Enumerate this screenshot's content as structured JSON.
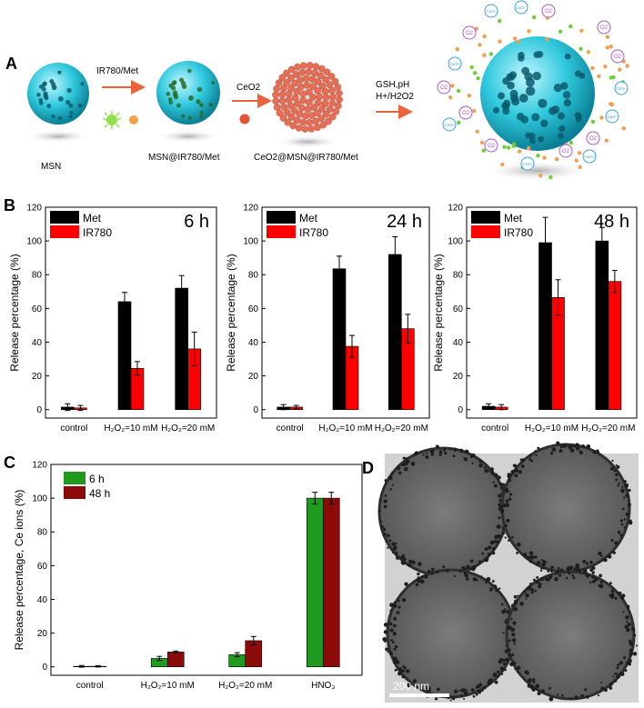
{
  "panel_letters": {
    "a": "A",
    "b": "B",
    "c": "C",
    "d": "D"
  },
  "scheme": {
    "stage1_label": "MSN",
    "arrow1_label": "IR780/Met",
    "stage2_label": "MSN@IR780/Met",
    "arrow2_label": "CeO2",
    "stage3_label": "CeO2@MSN@IR780/Met",
    "arrow3_label_line1": "GSH,pH",
    "arrow3_label_line2": "H+/H2O2",
    "ion_label_ce": "Ce3+",
    "ion_label_o": "O2",
    "colors": {
      "silica": "#2ec9de",
      "ceria": "#e56f55",
      "arrow": "#e9643a",
      "green_dot": "#6ccf3a",
      "orange_dot": "#f0a050"
    }
  },
  "tem": {
    "scale_bar_label": "200 nm"
  },
  "chart_data": [
    {
      "id": "B1",
      "type": "bar",
      "title": "6 h",
      "categories": [
        "control",
        "H₂O₂=10 mM",
        "H₂O₂=20 mM"
      ],
      "series": [
        {
          "name": "Met",
          "color": "#000000",
          "values": [
            1.5,
            64,
            72
          ],
          "errors": [
            2,
            5.5,
            7.5
          ]
        },
        {
          "name": "IR780",
          "color": "#ff0000",
          "values": [
            1.0,
            24.5,
            36
          ],
          "errors": [
            1.5,
            4,
            10
          ]
        }
      ],
      "xlabel": "",
      "ylabel": "Release percentage (%)",
      "ylim": [
        -5,
        120
      ],
      "yticks": [
        0,
        20,
        40,
        60,
        80,
        100,
        120
      ]
    },
    {
      "id": "B2",
      "type": "bar",
      "title": "24 h",
      "categories": [
        "control",
        "H₂O₂=10 mM",
        "H₂O₂=20 mM"
      ],
      "series": [
        {
          "name": "Met",
          "color": "#000000",
          "values": [
            1.5,
            83.5,
            92
          ],
          "errors": [
            1.5,
            7.5,
            10.5
          ]
        },
        {
          "name": "IR780",
          "color": "#ff0000",
          "values": [
            1.5,
            37.5,
            48
          ],
          "errors": [
            1,
            6.5,
            8.5
          ]
        }
      ],
      "xlabel": "",
      "ylabel": "Release percentage (%)",
      "ylim": [
        -5,
        120
      ],
      "yticks": [
        0,
        20,
        40,
        60,
        80,
        100,
        120
      ]
    },
    {
      "id": "B3",
      "type": "bar",
      "title": "48 h",
      "categories": [
        "control",
        "H₂O₂=10 mM",
        "H₂O₂=20 mM"
      ],
      "series": [
        {
          "name": "Met",
          "color": "#000000",
          "values": [
            2,
            99,
            100
          ],
          "errors": [
            1.5,
            15,
            8
          ]
        },
        {
          "name": "IR780",
          "color": "#ff0000",
          "values": [
            1.5,
            66.5,
            76
          ],
          "errors": [
            1.5,
            10.5,
            6.5
          ]
        }
      ],
      "xlabel": "",
      "ylabel": "Release percentage (%)",
      "ylim": [
        -5,
        120
      ],
      "yticks": [
        0,
        20,
        40,
        60,
        80,
        100,
        120
      ]
    },
    {
      "id": "C",
      "type": "bar",
      "title": "",
      "categories": [
        "control",
        "H₂O₂=10 mM",
        "H₂O₂=20 mM",
        "HNO₃"
      ],
      "series": [
        {
          "name": "6 h",
          "color": "#1f9a1f",
          "values": [
            0.3,
            5,
            7.2,
            100
          ],
          "errors": [
            0.5,
            1.2,
            1.2,
            3.5
          ]
        },
        {
          "name": "48 h",
          "color": "#8b0a0a",
          "values": [
            0.3,
            8.8,
            15.5,
            100
          ],
          "errors": [
            0.4,
            0.6,
            2.5,
            3.5
          ]
        }
      ],
      "xlabel": "",
      "ylabel": "Release percentage, Ce ions (%)",
      "ylim": [
        -5,
        120
      ],
      "yticks": [
        0,
        20,
        40,
        60,
        80,
        100,
        120
      ]
    }
  ]
}
